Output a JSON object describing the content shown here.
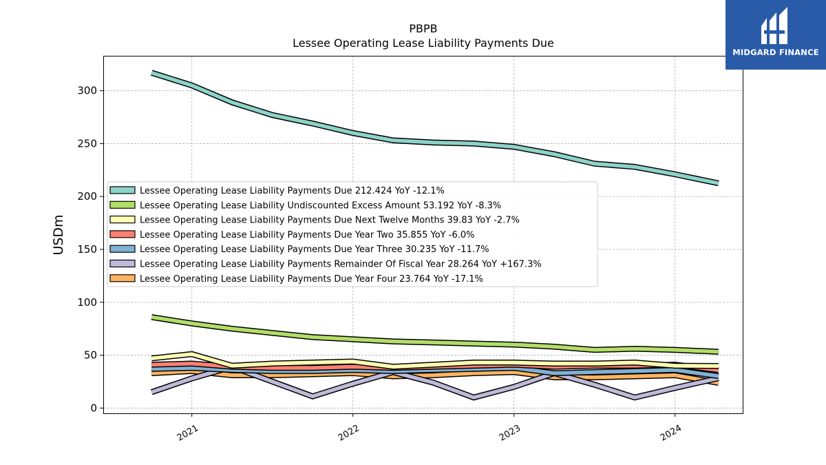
{
  "brand": {
    "name": "MIDGARD FINANCE",
    "color": "#2a5ba8"
  },
  "chart_data": {
    "type": "line",
    "title": "PBPB",
    "subtitle": "Lessee Operating Lease Liability Payments Due",
    "xlabel": "",
    "ylabel": "USDm",
    "ylim": [
      -5,
      333
    ],
    "xlim": [
      2020.45,
      2024.42
    ],
    "yticks": [
      0,
      50,
      100,
      150,
      200,
      250,
      300
    ],
    "xticks": [
      2021,
      2022,
      2023,
      2024
    ],
    "grid": true,
    "legend_position": "center-left",
    "series": [
      {
        "name": "Lessee Operating Lease Liability Payments Due",
        "legend_label": "Lessee Operating Lease Liability Payments Due  212.424 YoY -12.1%",
        "color": "#8dd3c7",
        "x": [
          2020.75,
          2021.0,
          2021.25,
          2021.5,
          2021.75,
          2022.0,
          2022.25,
          2022.5,
          2022.75,
          2023.0,
          2023.25,
          2023.5,
          2023.75,
          2024.0,
          2024.27
        ],
        "y": [
          317,
          305,
          289,
          277,
          269,
          260,
          253,
          251,
          250,
          247,
          240,
          231,
          228,
          221,
          212.424
        ]
      },
      {
        "name": "Lessee Operating Lease Liability Undiscounted Excess Amount",
        "legend_label": "Lessee Operating Lease Liability Undiscounted Excess Amount  53.192 YoY -8.3%",
        "color": "#b3de69",
        "x": [
          2020.75,
          2021.0,
          2021.25,
          2021.5,
          2021.75,
          2022.0,
          2022.25,
          2022.5,
          2022.75,
          2023.0,
          2023.25,
          2023.5,
          2023.75,
          2024.0,
          2024.27
        ],
        "y": [
          86,
          80,
          75,
          71,
          67,
          65,
          63,
          62,
          61,
          60,
          58,
          55,
          56,
          55,
          53.192
        ]
      },
      {
        "name": "Lessee Operating Lease Liability Payments Due Next Twelve Months",
        "legend_label": "Lessee Operating Lease Liability Payments Due Next Twelve Months  39.83 YoY -2.7%",
        "color": "#ffffb3",
        "x": [
          2020.75,
          2021.0,
          2021.25,
          2021.5,
          2021.75,
          2022.0,
          2022.25,
          2022.5,
          2022.75,
          2023.0,
          2023.25,
          2023.5,
          2023.75,
          2024.0,
          2024.27
        ],
        "y": [
          47,
          51,
          40,
          42,
          43,
          44,
          39,
          41,
          43,
          43,
          42,
          42,
          43,
          40,
          39.83
        ]
      },
      {
        "name": "Lessee Operating Lease Liability Payments Due Year Two",
        "legend_label": "Lessee Operating Lease Liability Payments Due Year Two  35.855 YoY -6.0%",
        "color": "#fb8072",
        "x": [
          2020.75,
          2021.0,
          2021.25,
          2021.5,
          2021.75,
          2022.0,
          2022.25,
          2022.5,
          2022.75,
          2023.0,
          2023.25,
          2023.5,
          2023.75,
          2024.0,
          2024.27
        ],
        "y": [
          41,
          42,
          39,
          38,
          38,
          39,
          38,
          39,
          40,
          41,
          39,
          40,
          40,
          41,
          35.855
        ]
      },
      {
        "name": "Lessee Operating Lease Liability Payments Due Year Three",
        "legend_label": "Lessee Operating Lease Liability Payments Due Year Three  30.235 YoY -11.7%",
        "color": "#80b1d3",
        "x": [
          2020.75,
          2021.0,
          2021.25,
          2021.5,
          2021.75,
          2022.0,
          2022.25,
          2022.5,
          2022.75,
          2023.0,
          2023.25,
          2023.5,
          2023.75,
          2024.0,
          2024.27
        ],
        "y": [
          37,
          38,
          36,
          35,
          35,
          36,
          35,
          36,
          37,
          38,
          33,
          34,
          35,
          36,
          30.235
        ]
      },
      {
        "name": "Lessee Operating Lease Liability Payments Remainder Of Fiscal Year",
        "legend_label": "Lessee Operating Lease Liability Payments Remainder Of Fiscal Year  28.264 YoY +167.3%",
        "color": "#bebada",
        "x": [
          2020.75,
          2021.0,
          2021.25,
          2021.5,
          2021.75,
          2022.0,
          2022.25,
          2022.5,
          2022.75,
          2023.0,
          2023.25,
          2023.5,
          2023.75,
          2024.0,
          2024.27
        ],
        "y": [
          15,
          28,
          39,
          25,
          11,
          23,
          34,
          24,
          10,
          20,
          33,
          22,
          10,
          19,
          28.264
        ]
      },
      {
        "name": "Lessee Operating Lease Liability Payments Due Year Four",
        "legend_label": "Lessee Operating Lease Liability Payments Due Year Four  23.764 YoY -17.1%",
        "color": "#fdb462",
        "x": [
          2020.75,
          2021.0,
          2021.25,
          2021.5,
          2021.75,
          2022.0,
          2022.25,
          2022.5,
          2022.75,
          2023.0,
          2023.25,
          2023.5,
          2023.75,
          2024.0,
          2024.27
        ],
        "y": [
          33,
          35,
          31,
          31,
          32,
          33,
          30,
          31,
          33,
          34,
          29,
          29,
          30,
          31,
          23.764
        ]
      }
    ]
  }
}
